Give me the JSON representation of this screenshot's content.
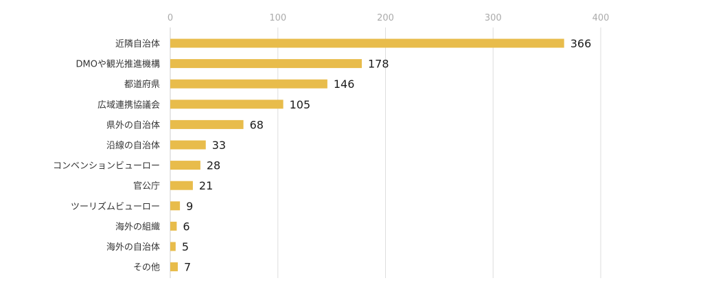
{
  "chart_data": {
    "type": "bar",
    "orientation": "horizontal",
    "categories": [
      "近隣自治体",
      "DMOや観光推進機構",
      "都道府県",
      "広域連携協議会",
      "県外の自治体",
      "沿線の自治体",
      "コンベンションビューロー",
      "官公庁",
      "ツーリズムビューロー",
      "海外の組織",
      "海外の自治体",
      "その他"
    ],
    "values": [
      366,
      178,
      146,
      105,
      68,
      33,
      28,
      21,
      9,
      6,
      5,
      7
    ],
    "xlim": [
      0,
      400
    ],
    "xticks": [
      0,
      100,
      200,
      300,
      400
    ],
    "xtick_labels": [
      "0",
      "100",
      "200",
      "300",
      "400"
    ],
    "axis_position": "top",
    "grid": true,
    "data_labels": true,
    "bar_color": "#e8bc4b",
    "title": "",
    "xlabel": "",
    "ylabel": ""
  }
}
